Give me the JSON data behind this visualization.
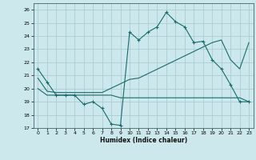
{
  "xlabel": "Humidex (Indice chaleur)",
  "bg_color": "#cce8ec",
  "line_color": "#1a6b6b",
  "grid_color": "#aacdd4",
  "xlim": [
    -0.5,
    23.5
  ],
  "ylim": [
    17,
    26.5
  ],
  "yticks": [
    17,
    18,
    19,
    20,
    21,
    22,
    23,
    24,
    25,
    26
  ],
  "xticks": [
    0,
    1,
    2,
    3,
    4,
    5,
    6,
    7,
    8,
    9,
    10,
    11,
    12,
    13,
    14,
    15,
    16,
    17,
    18,
    19,
    20,
    21,
    22,
    23
  ],
  "line1_x": [
    0,
    1,
    2,
    3,
    4,
    5,
    6,
    7,
    8,
    9,
    10,
    11,
    12,
    13,
    14,
    15,
    16,
    17,
    18,
    19,
    20,
    21,
    22,
    23
  ],
  "line1_y": [
    21.5,
    20.5,
    19.5,
    19.5,
    19.5,
    18.8,
    19.0,
    18.5,
    17.3,
    17.2,
    24.3,
    23.7,
    24.3,
    24.7,
    25.8,
    25.1,
    24.7,
    23.5,
    23.6,
    22.2,
    21.5,
    20.3,
    19.0,
    19.0
  ],
  "line2_x": [
    0,
    1,
    2,
    3,
    4,
    5,
    6,
    7,
    8,
    9,
    10,
    19,
    20,
    21,
    22,
    23
  ],
  "line2_y": [
    20.0,
    19.5,
    19.5,
    19.5,
    19.5,
    19.5,
    19.5,
    19.5,
    19.5,
    19.3,
    19.3,
    19.3,
    19.3,
    19.3,
    19.3,
    19.0
  ],
  "line3_x": [
    0,
    1,
    2,
    3,
    4,
    5,
    6,
    7,
    10,
    11,
    19,
    20,
    21,
    22,
    23
  ],
  "line3_y": [
    20.8,
    19.8,
    19.7,
    19.7,
    19.7,
    19.7,
    19.7,
    19.7,
    20.7,
    20.8,
    23.5,
    23.7,
    22.2,
    21.5,
    23.5
  ]
}
